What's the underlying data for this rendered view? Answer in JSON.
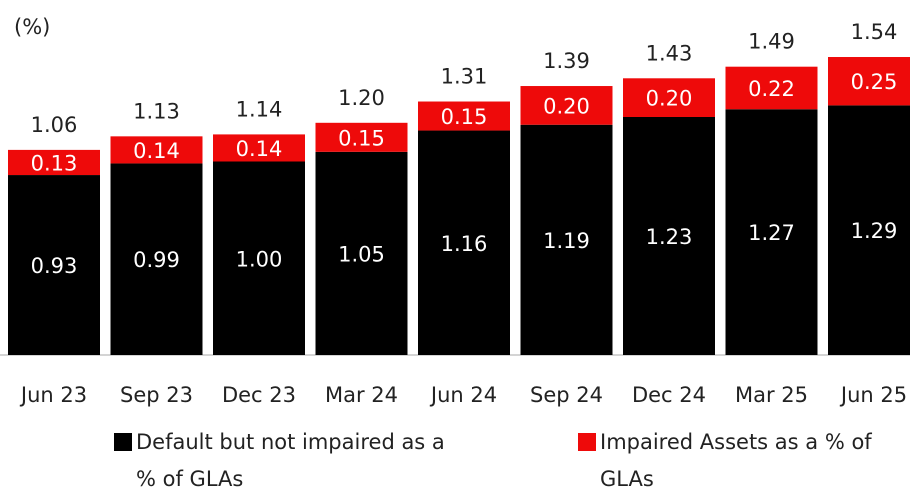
{
  "chart_data": {
    "type": "stacked_bar",
    "y_label": "(%)",
    "categories": [
      "Jun 23",
      "Sep 23",
      "Dec 23",
      "Mar 24",
      "Jun 24",
      "Sep 24",
      "Dec 24",
      "Mar 25",
      "Jun 25"
    ],
    "series": [
      {
        "name": "Default but not impaired as a % of GLAs",
        "color": "#000000",
        "values": [
          0.93,
          0.99,
          1.0,
          1.05,
          1.16,
          1.19,
          1.23,
          1.27,
          1.29
        ],
        "value_labels": [
          "0.93",
          "0.99",
          "1.00",
          "1.05",
          "1.16",
          "1.19",
          "1.23",
          "1.27",
          "1.29"
        ]
      },
      {
        "name": "Impaired Assets as a % of GLAs",
        "color": "#ee0a0a",
        "values": [
          0.13,
          0.14,
          0.14,
          0.15,
          0.15,
          0.2,
          0.2,
          0.22,
          0.25
        ],
        "value_labels": [
          "0.13",
          "0.14",
          "0.14",
          "0.15",
          "0.15",
          "0.20",
          "0.20",
          "0.22",
          "0.25"
        ]
      }
    ],
    "totals": [
      1.06,
      1.13,
      1.14,
      1.2,
      1.31,
      1.39,
      1.43,
      1.49,
      1.54
    ],
    "total_labels": [
      "1.06",
      "1.13",
      "1.14",
      "1.20",
      "1.31",
      "1.39",
      "1.43",
      "1.49",
      "1.54"
    ]
  }
}
